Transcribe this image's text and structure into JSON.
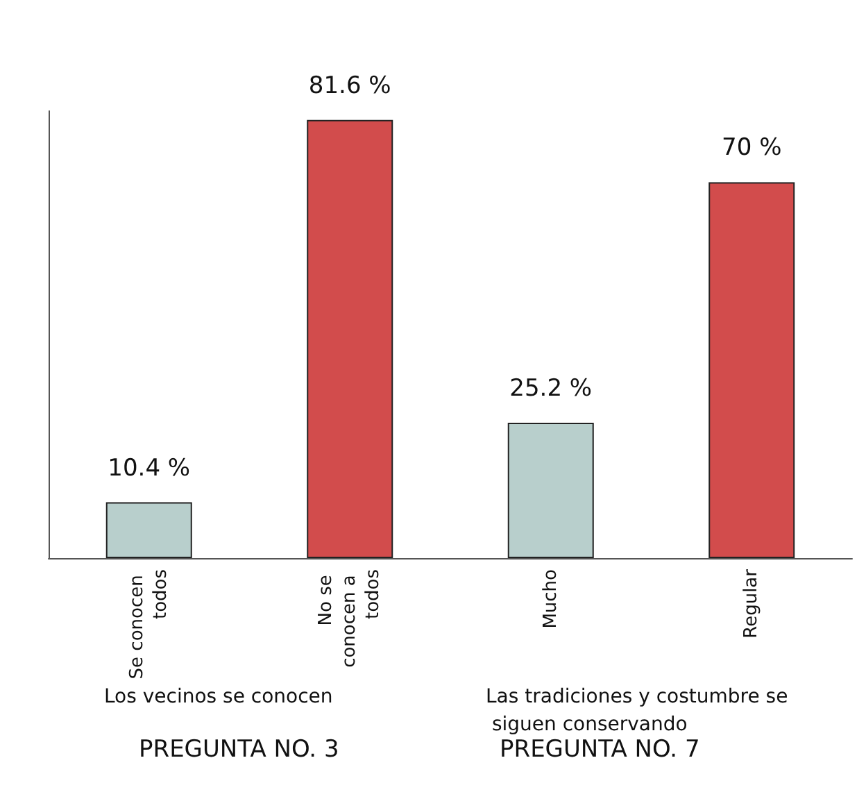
{
  "chart_data": {
    "type": "bar",
    "categories": [
      "Se conocen todos",
      "No se conocen a todos",
      "Mucho",
      "Regular"
    ],
    "values": [
      10.4,
      81.6,
      25.2,
      70
    ],
    "value_labels": [
      "10.4 %",
      "81.6 %",
      "25.2 %",
      "70 %"
    ],
    "colors": [
      "#b8cfcc",
      "#d24c4c",
      "#b8cfcc",
      "#d24c4c"
    ],
    "annotations": [
      "Los vecinos se conocen",
      "PREGUNTA NO. 3",
      "Las tradiciones y costumbre se siguen conservando",
      "PREGUNTA NO. 7"
    ]
  }
}
